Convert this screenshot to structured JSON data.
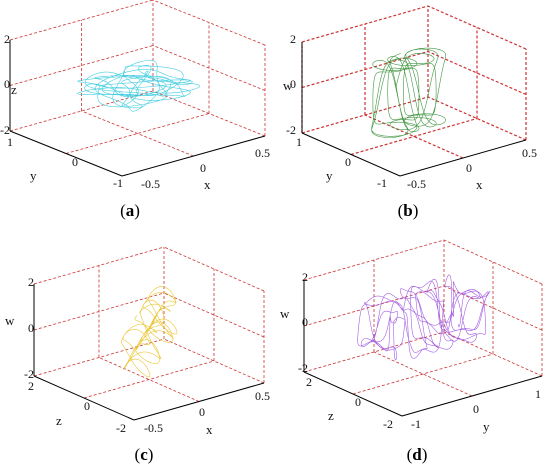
{
  "panels": [
    {
      "id": "a",
      "caption": "a",
      "color": "#33c9dd",
      "vertical_axis": {
        "label": "z",
        "ticks": [
          "2",
          "0",
          "-2"
        ]
      },
      "right_axis": {
        "label": "x",
        "ticks": [
          "-0.5",
          "0",
          "0.5"
        ]
      },
      "left_axis": {
        "label": "y",
        "ticks": [
          "1",
          "0",
          "-1"
        ]
      }
    },
    {
      "id": "b",
      "caption": "b",
      "color": "#2e8b2e",
      "vertical_axis": {
        "label": "w",
        "ticks": [
          "2",
          "0",
          "-2"
        ]
      },
      "right_axis": {
        "label": "x",
        "ticks": [
          "-0.5",
          "0",
          "0.5"
        ]
      },
      "left_axis": {
        "label": "y",
        "ticks": [
          "1",
          "0",
          "-1"
        ]
      }
    },
    {
      "id": "c",
      "caption": "c",
      "color": "#e8c020",
      "vertical_axis": {
        "label": "w",
        "ticks": [
          "2",
          "0",
          "-2"
        ]
      },
      "right_axis": {
        "label": "x",
        "ticks": [
          "-0.5",
          "0",
          "0.5"
        ]
      },
      "left_axis": {
        "label": "z",
        "ticks": [
          "2",
          "0",
          "-2"
        ]
      }
    },
    {
      "id": "d",
      "caption": "d",
      "color": "#9b4fe0",
      "vertical_axis": {
        "label": "w",
        "ticks": [
          "2",
          "0",
          "-2"
        ]
      },
      "right_axis": {
        "label": "y",
        "ticks": [
          "-1",
          "0",
          "1"
        ]
      },
      "left_axis": {
        "label": "z",
        "ticks": [
          "2",
          "0",
          "-2"
        ]
      }
    }
  ],
  "grid_color": "#cc3333"
}
